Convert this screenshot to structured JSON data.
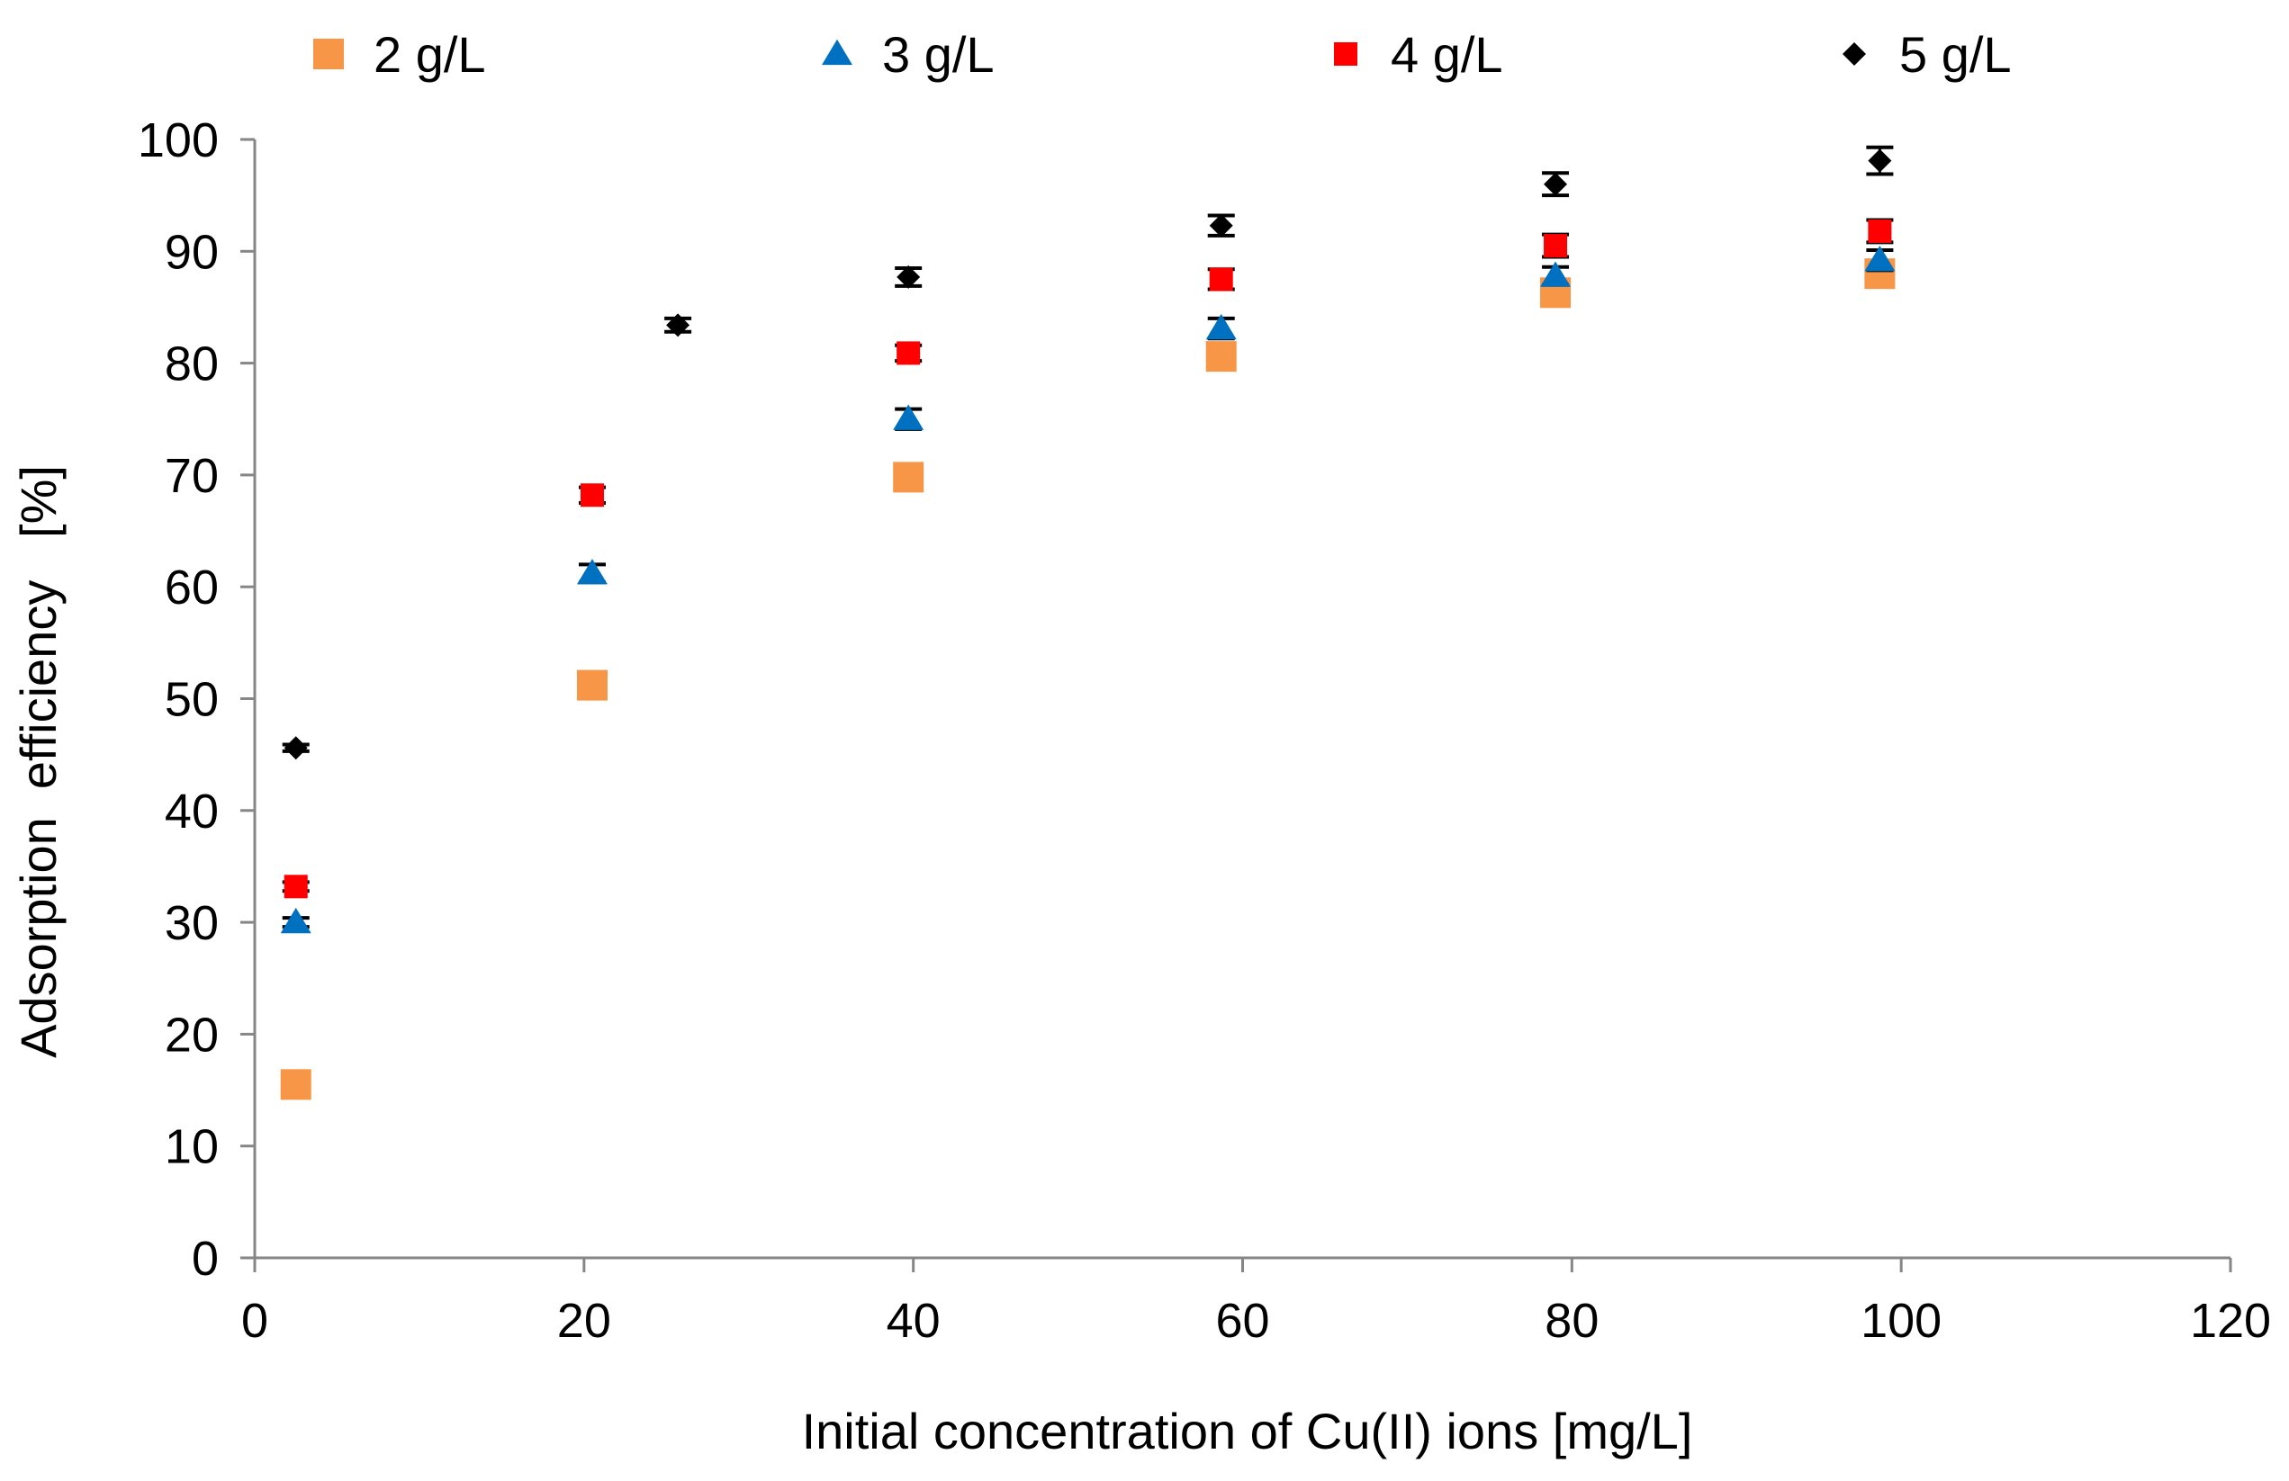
{
  "chart_data": {
    "type": "scatter",
    "title": "",
    "xlabel": "Initial concentration of Cu(II) ions [mg/L]",
    "ylabel": "Adsorption  efficiency   [%]",
    "xlim": [
      0,
      120
    ],
    "ylim": [
      0,
      100
    ],
    "xticks": [
      0,
      20,
      40,
      60,
      80,
      100,
      120
    ],
    "yticks": [
      0,
      10,
      20,
      30,
      40,
      50,
      60,
      70,
      80,
      90,
      100
    ],
    "grid": false,
    "legend_position": "top",
    "series": [
      {
        "name": "2 g/L",
        "marker": "square",
        "color": "#F79646",
        "x": [
          2.5,
          20.5,
          39.7,
          58.7,
          79.0,
          98.7
        ],
        "y": [
          15.5,
          51.2,
          69.8,
          80.6,
          86.3,
          88.0
        ],
        "err": [
          0,
          0,
          0,
          0,
          0.5,
          0.5
        ]
      },
      {
        "name": "3 g/L",
        "marker": "triangle",
        "color": "#0070C0",
        "x": [
          2.5,
          20.5,
          39.7,
          58.7,
          79.0,
          98.7
        ],
        "y": [
          30.0,
          61.2,
          75.0,
          83.1,
          87.8,
          89.2
        ],
        "err": [
          0.4,
          0.8,
          0.9,
          0.9,
          0.8,
          0.9
        ]
      },
      {
        "name": "4 g/L",
        "marker": "square",
        "color": "#FF0000",
        "x": [
          2.5,
          20.5,
          39.7,
          58.7,
          79.0,
          98.7
        ],
        "y": [
          33.2,
          68.2,
          80.9,
          87.5,
          90.5,
          91.8
        ],
        "err": [
          0.4,
          0.7,
          0.7,
          0.9,
          1.0,
          1.0
        ]
      },
      {
        "name": "5 g/L",
        "marker": "diamond",
        "color": "#000000",
        "x": [
          2.5,
          25.7,
          39.7,
          58.7,
          79.0,
          98.7
        ],
        "y": [
          45.6,
          83.4,
          87.7,
          92.3,
          96.0,
          98.1
        ],
        "err": [
          0.3,
          0.6,
          0.8,
          0.9,
          1.0,
          1.2
        ]
      }
    ]
  }
}
